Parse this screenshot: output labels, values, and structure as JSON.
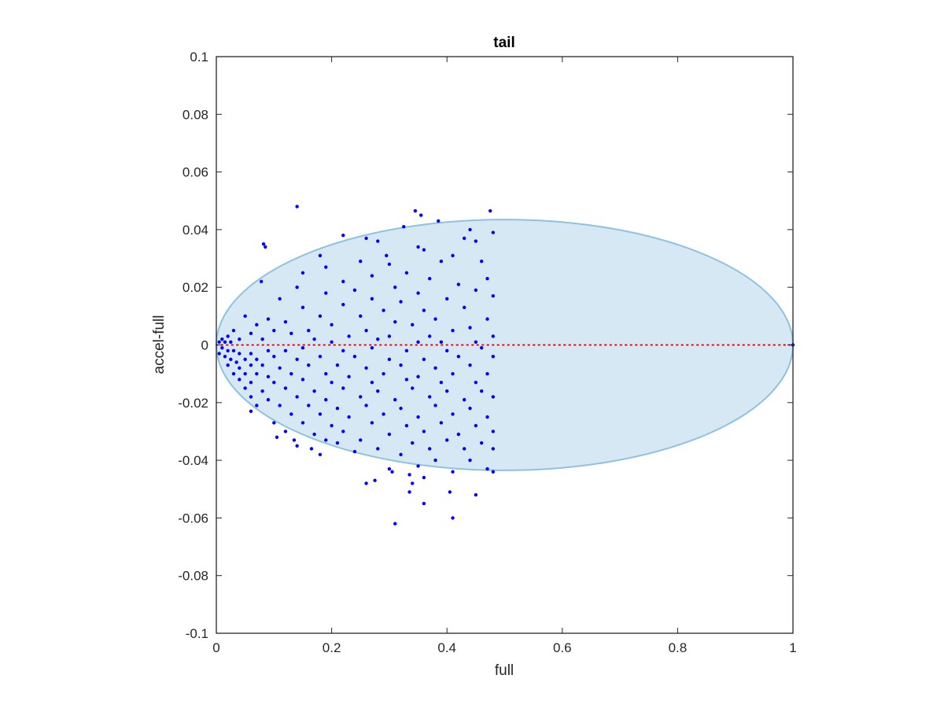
{
  "chart_data": {
    "type": "scatter",
    "title": "tail",
    "xlabel": "full",
    "ylabel": "accel-full",
    "xlim": [
      0,
      1
    ],
    "ylim": [
      -0.1,
      0.1
    ],
    "x_ticks": [
      0,
      0.2,
      0.4,
      0.6,
      0.8,
      1
    ],
    "x_tick_labels": [
      "0",
      "0.2",
      "0.4",
      "0.6",
      "0.8",
      "1"
    ],
    "y_ticks": [
      -0.1,
      -0.08,
      -0.06,
      -0.04,
      -0.02,
      0,
      0.02,
      0.04,
      0.06,
      0.08,
      0.1
    ],
    "y_tick_labels": [
      "-0.1",
      "-0.08",
      "-0.06",
      "-0.04",
      "-0.02",
      "0",
      "0.02",
      "0.04",
      "0.06",
      "0.08",
      "0.1"
    ],
    "grid": false,
    "legend": "none",
    "region": {
      "shape": "ellipse",
      "center": [
        0.5,
        0
      ],
      "semi_axes": [
        0.5,
        0.0435
      ],
      "fill_color": "#d6e8f3",
      "edge_color": "#8ec2e0"
    },
    "reference_line": {
      "y": 0,
      "x_range": [
        0,
        1
      ],
      "style": "dotted",
      "color": "#ff0000"
    },
    "marker_color": "#0000ff",
    "points": [
      [
        0.14,
        0.048
      ],
      [
        0.345,
        0.0465
      ],
      [
        0.355,
        0.045
      ],
      [
        0.385,
        0.043
      ],
      [
        0.475,
        0.0465
      ],
      [
        0.325,
        0.041
      ],
      [
        0.44,
        0.04
      ],
      [
        0.48,
        0.039
      ],
      [
        0.22,
        0.038
      ],
      [
        0.082,
        0.035
      ],
      [
        0.085,
        0.034
      ],
      [
        0.26,
        0.037
      ],
      [
        0.28,
        0.036
      ],
      [
        0.45,
        0.036
      ],
      [
        0.43,
        0.037
      ],
      [
        0.35,
        0.034
      ],
      [
        0.295,
        0.031
      ],
      [
        0.18,
        0.031
      ],
      [
        0.41,
        0.031
      ],
      [
        0.36,
        0.033
      ],
      [
        0.25,
        0.029
      ],
      [
        0.46,
        0.029
      ],
      [
        0.3,
        0.028
      ],
      [
        0.39,
        0.029
      ],
      [
        0.19,
        0.027
      ],
      [
        0.33,
        0.025
      ],
      [
        0.15,
        0.025
      ],
      [
        0.27,
        0.024
      ],
      [
        0.47,
        0.023
      ],
      [
        0.22,
        0.022
      ],
      [
        0.078,
        0.022
      ],
      [
        0.37,
        0.023
      ],
      [
        0.42,
        0.021
      ],
      [
        0.31,
        0.02
      ],
      [
        0.14,
        0.02
      ],
      [
        0.24,
        0.019
      ],
      [
        0.45,
        0.019
      ],
      [
        0.35,
        0.018
      ],
      [
        0.19,
        0.018
      ],
      [
        0.48,
        0.017
      ],
      [
        0.27,
        0.016
      ],
      [
        0.11,
        0.016
      ],
      [
        0.4,
        0.016
      ],
      [
        0.32,
        0.015
      ],
      [
        0.22,
        0.014
      ],
      [
        0.15,
        0.013
      ],
      [
        0.43,
        0.013
      ],
      [
        0.36,
        0.012
      ],
      [
        0.29,
        0.012
      ],
      [
        0.05,
        0.01
      ],
      [
        0.09,
        0.009
      ],
      [
        0.18,
        0.01
      ],
      [
        0.25,
        0.01
      ],
      [
        0.38,
        0.009
      ],
      [
        0.47,
        0.009
      ],
      [
        0.12,
        0.008
      ],
      [
        0.31,
        0.008
      ],
      [
        0.07,
        0.007
      ],
      [
        0.2,
        0.007
      ],
      [
        0.34,
        0.007
      ],
      [
        0.44,
        0.006
      ],
      [
        0.03,
        0.005
      ],
      [
        0.1,
        0.005
      ],
      [
        0.16,
        0.005
      ],
      [
        0.26,
        0.005
      ],
      [
        0.41,
        0.005
      ],
      [
        0.06,
        0.004
      ],
      [
        0.13,
        0.004
      ],
      [
        0.23,
        0.003
      ],
      [
        0.3,
        0.003
      ],
      [
        0.37,
        0.003
      ],
      [
        0.48,
        0.003
      ],
      [
        0.02,
        0.003
      ],
      [
        0.04,
        0.002
      ],
      [
        0.08,
        0.002
      ],
      [
        0.17,
        0.002
      ],
      [
        0.28,
        0.002
      ],
      [
        0.35,
        0.001
      ],
      [
        0.45,
        0.001
      ],
      [
        0.01,
        0.002
      ],
      [
        0.015,
        0.001
      ],
      [
        0.025,
        0.001
      ],
      [
        0.005,
        0.001
      ],
      [
        0.2,
        0.001
      ],
      [
        0.39,
        0.001
      ],
      [
        1.0,
        0.0
      ],
      [
        0.01,
        -0.001
      ],
      [
        0.02,
        -0.002
      ],
      [
        0.03,
        -0.002
      ],
      [
        0.005,
        -0.003
      ],
      [
        0.04,
        -0.003
      ],
      [
        0.06,
        -0.003
      ],
      [
        0.09,
        -0.002
      ],
      [
        0.12,
        -0.002
      ],
      [
        0.15,
        -0.001
      ],
      [
        0.22,
        -0.002
      ],
      [
        0.27,
        -0.001
      ],
      [
        0.33,
        -0.002
      ],
      [
        0.4,
        -0.002
      ],
      [
        0.46,
        -0.001
      ],
      [
        0.015,
        -0.004
      ],
      [
        0.025,
        -0.005
      ],
      [
        0.035,
        -0.006
      ],
      [
        0.05,
        -0.005
      ],
      [
        0.07,
        -0.005
      ],
      [
        0.1,
        -0.004
      ],
      [
        0.14,
        -0.005
      ],
      [
        0.18,
        -0.004
      ],
      [
        0.24,
        -0.004
      ],
      [
        0.3,
        -0.005
      ],
      [
        0.36,
        -0.005
      ],
      [
        0.42,
        -0.004
      ],
      [
        0.48,
        -0.004
      ],
      [
        0.02,
        -0.007
      ],
      [
        0.04,
        -0.008
      ],
      [
        0.06,
        -0.007
      ],
      [
        0.08,
        -0.007
      ],
      [
        0.11,
        -0.008
      ],
      [
        0.16,
        -0.007
      ],
      [
        0.21,
        -0.007
      ],
      [
        0.26,
        -0.008
      ],
      [
        0.32,
        -0.007
      ],
      [
        0.38,
        -0.008
      ],
      [
        0.44,
        -0.007
      ],
      [
        0.03,
        -0.01
      ],
      [
        0.05,
        -0.01
      ],
      [
        0.07,
        -0.01
      ],
      [
        0.09,
        -0.011
      ],
      [
        0.13,
        -0.01
      ],
      [
        0.19,
        -0.01
      ],
      [
        0.23,
        -0.011
      ],
      [
        0.29,
        -0.01
      ],
      [
        0.35,
        -0.011
      ],
      [
        0.41,
        -0.01
      ],
      [
        0.47,
        -0.01
      ],
      [
        0.04,
        -0.012
      ],
      [
        0.06,
        -0.013
      ],
      [
        0.1,
        -0.013
      ],
      [
        0.15,
        -0.012
      ],
      [
        0.2,
        -0.013
      ],
      [
        0.27,
        -0.013
      ],
      [
        0.33,
        -0.012
      ],
      [
        0.39,
        -0.013
      ],
      [
        0.45,
        -0.013
      ],
      [
        0.05,
        -0.015
      ],
      [
        0.08,
        -0.016
      ],
      [
        0.12,
        -0.015
      ],
      [
        0.17,
        -0.016
      ],
      [
        0.22,
        -0.015
      ],
      [
        0.28,
        -0.016
      ],
      [
        0.34,
        -0.015
      ],
      [
        0.4,
        -0.016
      ],
      [
        0.46,
        -0.016
      ],
      [
        0.06,
        -0.018
      ],
      [
        0.09,
        -0.019
      ],
      [
        0.14,
        -0.018
      ],
      [
        0.19,
        -0.019
      ],
      [
        0.25,
        -0.018
      ],
      [
        0.31,
        -0.019
      ],
      [
        0.37,
        -0.018
      ],
      [
        0.43,
        -0.019
      ],
      [
        0.48,
        -0.018
      ],
      [
        0.07,
        -0.021
      ],
      [
        0.11,
        -0.021
      ],
      [
        0.16,
        -0.021
      ],
      [
        0.21,
        -0.022
      ],
      [
        0.26,
        -0.021
      ],
      [
        0.32,
        -0.022
      ],
      [
        0.38,
        -0.021
      ],
      [
        0.44,
        -0.022
      ],
      [
        0.06,
        -0.023
      ],
      [
        0.13,
        -0.024
      ],
      [
        0.18,
        -0.024
      ],
      [
        0.23,
        -0.025
      ],
      [
        0.29,
        -0.024
      ],
      [
        0.35,
        -0.025
      ],
      [
        0.41,
        -0.024
      ],
      [
        0.47,
        -0.025
      ],
      [
        0.1,
        -0.027
      ],
      [
        0.15,
        -0.027
      ],
      [
        0.2,
        -0.028
      ],
      [
        0.27,
        -0.027
      ],
      [
        0.33,
        -0.028
      ],
      [
        0.39,
        -0.027
      ],
      [
        0.45,
        -0.028
      ],
      [
        0.12,
        -0.03
      ],
      [
        0.17,
        -0.031
      ],
      [
        0.22,
        -0.03
      ],
      [
        0.3,
        -0.031
      ],
      [
        0.36,
        -0.03
      ],
      [
        0.42,
        -0.031
      ],
      [
        0.48,
        -0.03
      ],
      [
        0.105,
        -0.032
      ],
      [
        0.135,
        -0.033
      ],
      [
        0.19,
        -0.033
      ],
      [
        0.25,
        -0.033
      ],
      [
        0.34,
        -0.034
      ],
      [
        0.4,
        -0.033
      ],
      [
        0.46,
        -0.034
      ],
      [
        0.14,
        -0.035
      ],
      [
        0.21,
        -0.034
      ],
      [
        0.28,
        -0.036
      ],
      [
        0.37,
        -0.036
      ],
      [
        0.43,
        -0.036
      ],
      [
        0.48,
        -0.036
      ],
      [
        0.165,
        -0.036
      ],
      [
        0.24,
        -0.037
      ],
      [
        0.32,
        -0.038
      ],
      [
        0.38,
        -0.04
      ],
      [
        0.44,
        -0.04
      ],
      [
        0.18,
        -0.038
      ],
      [
        0.3,
        -0.043
      ],
      [
        0.35,
        -0.042
      ],
      [
        0.47,
        -0.043
      ],
      [
        0.41,
        -0.044
      ],
      [
        0.305,
        -0.044
      ],
      [
        0.335,
        -0.045
      ],
      [
        0.36,
        -0.046
      ],
      [
        0.275,
        -0.047
      ],
      [
        0.26,
        -0.048
      ],
      [
        0.34,
        -0.048
      ],
      [
        0.48,
        -0.044
      ],
      [
        0.335,
        -0.051
      ],
      [
        0.405,
        -0.051
      ],
      [
        0.45,
        -0.052
      ],
      [
        0.36,
        -0.055
      ],
      [
        0.41,
        -0.06
      ],
      [
        0.31,
        -0.062
      ]
    ]
  }
}
